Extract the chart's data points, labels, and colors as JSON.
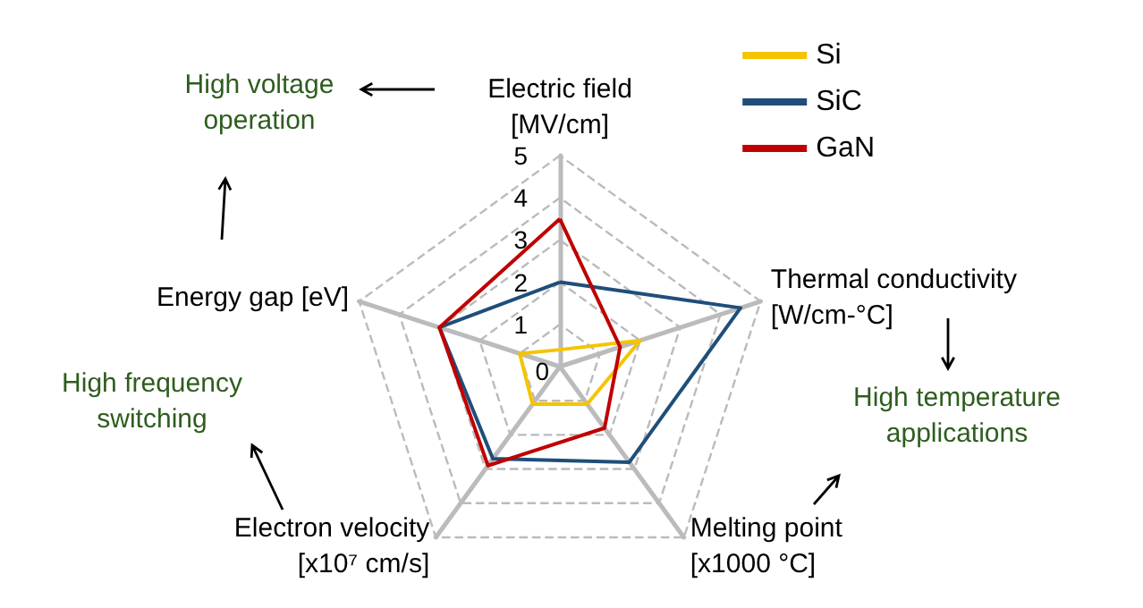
{
  "chart_data": {
    "type": "radar",
    "categories": [
      "Electric field\n[MV/cm]",
      "Thermal conductivity\n[W/cm-°C]",
      "Melting point\n[x1000 °C]",
      "Electron velocity\n[x10⁷ cm/s]",
      "Energy gap [eV]"
    ],
    "series": [
      {
        "name": "Si",
        "color": "#f5c400",
        "values": [
          0.4,
          2.0,
          1.1,
          1.1,
          1.0
        ]
      },
      {
        "name": "SiC",
        "color": "#1f4e79",
        "values": [
          2.0,
          4.5,
          2.8,
          2.7,
          3.0
        ]
      },
      {
        "name": "GaN",
        "color": "#c00000",
        "values": [
          3.5,
          1.5,
          1.8,
          2.9,
          3.0
        ]
      }
    ],
    "ylim": [
      0,
      5
    ],
    "yticks": [
      0,
      1,
      2,
      3,
      4,
      5
    ],
    "grid": true,
    "legend": "top right",
    "annotations": [
      "High voltage\noperation",
      "High frequency\nswitching",
      "High temperature\napplications"
    ]
  }
}
